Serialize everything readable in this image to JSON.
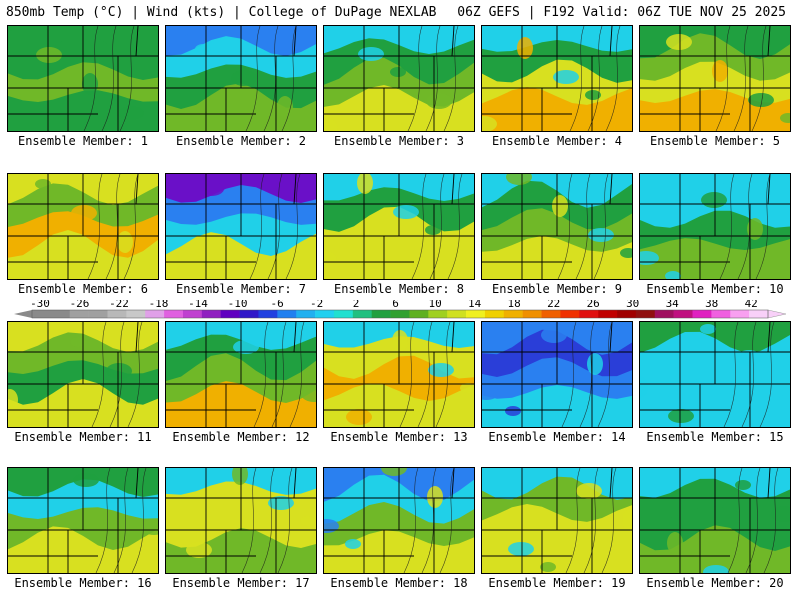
{
  "header": {
    "left": "850mb Temp (°C) | Wind (kts) | College of DuPage NEXLAB",
    "right": "06Z GEFS | F192 Valid: 06Z TUE NOV 25 2025"
  },
  "panel_label_prefix": "Ensemble Member: ",
  "members": [
    {
      "label": "Ensemble Member: 1",
      "pattern": [
        "n",
        "n",
        "m",
        "n"
      ]
    },
    {
      "label": "Ensemble Member: 2",
      "pattern": [
        "b",
        "c",
        "n",
        "m"
      ]
    },
    {
      "label": "Ensemble Member: 3",
      "pattern": [
        "c",
        "n",
        "m",
        "y"
      ]
    },
    {
      "label": "Ensemble Member: 4",
      "pattern": [
        "c",
        "n",
        "y",
        "o"
      ]
    },
    {
      "label": "Ensemble Member: 5",
      "pattern": [
        "n",
        "m",
        "y",
        "o"
      ]
    },
    {
      "label": "Ensemble Member: 6",
      "pattern": [
        "y",
        "m",
        "o",
        "y"
      ]
    },
    {
      "label": "Ensemble Member: 7",
      "pattern": [
        "p",
        "b",
        "c",
        "y"
      ]
    },
    {
      "label": "Ensemble Member: 8",
      "pattern": [
        "c",
        "n",
        "y",
        "y"
      ]
    },
    {
      "label": "Ensemble Member: 9",
      "pattern": [
        "c",
        "n",
        "m",
        "y"
      ]
    },
    {
      "label": "Ensemble Member: 10",
      "pattern": [
        "c",
        "c",
        "n",
        "m"
      ]
    },
    {
      "label": "Ensemble Member: 11",
      "pattern": [
        "y",
        "m",
        "n",
        "y"
      ]
    },
    {
      "label": "Ensemble Member: 12",
      "pattern": [
        "c",
        "n",
        "m",
        "o"
      ]
    },
    {
      "label": "Ensemble Member: 13",
      "pattern": [
        "c",
        "y",
        "o",
        "y"
      ]
    },
    {
      "label": "Ensemble Member: 14",
      "pattern": [
        "b",
        "d",
        "b",
        "c"
      ]
    },
    {
      "label": "Ensemble Member: 15",
      "pattern": [
        "n",
        "c",
        "c",
        "c"
      ]
    },
    {
      "label": "Ensemble Member: 16",
      "pattern": [
        "n",
        "c",
        "m",
        "y"
      ]
    },
    {
      "label": "Ensemble Member: 17",
      "pattern": [
        "c",
        "y",
        "y",
        "m"
      ]
    },
    {
      "label": "Ensemble Member: 18",
      "pattern": [
        "b",
        "c",
        "m",
        "y"
      ]
    },
    {
      "label": "Ensemble Member: 19",
      "pattern": [
        "c",
        "m",
        "y",
        "y"
      ]
    },
    {
      "label": "Ensemble Member: 20",
      "pattern": [
        "c",
        "n",
        "n",
        "m"
      ]
    }
  ],
  "colorbar": {
    "ticks": [
      "-30",
      "-26",
      "-22",
      "-18",
      "-14",
      "-10",
      "-6",
      "-2",
      "2",
      "6",
      "10",
      "14",
      "18",
      "22",
      "26",
      "30",
      "34",
      "38",
      "42"
    ],
    "colors": [
      "#8a8a8a",
      "#8a8a8a",
      "#a0a0a0",
      "#a0a0a0",
      "#b8b8b8",
      "#c8c8c8",
      "#e0a0e8",
      "#e060e0",
      "#c040d0",
      "#9020c0",
      "#6000c0",
      "#3018c8",
      "#2040e0",
      "#2080f0",
      "#20b0f0",
      "#20d0f0",
      "#20e0d0",
      "#20c080",
      "#20a040",
      "#30a030",
      "#60b020",
      "#a0d020",
      "#d0e020",
      "#f0f020",
      "#f0d000",
      "#f0b000",
      "#f09000",
      "#f06000",
      "#f03000",
      "#e01010",
      "#c00000",
      "#a00000",
      "#901010",
      "#a01060",
      "#c01080",
      "#e020c0",
      "#f060e0",
      "#f8a0f0",
      "#f8d0f8"
    ]
  },
  "palette": {
    "p": "#6a10c8",
    "d": "#2a3ed8",
    "b": "#2a80f0",
    "c": "#20d0e8",
    "n": "#20a040",
    "m": "#70b828",
    "y": "#d8e020",
    "o": "#f0b000",
    "border": "#000000",
    "contour": "#1a1a1a"
  }
}
